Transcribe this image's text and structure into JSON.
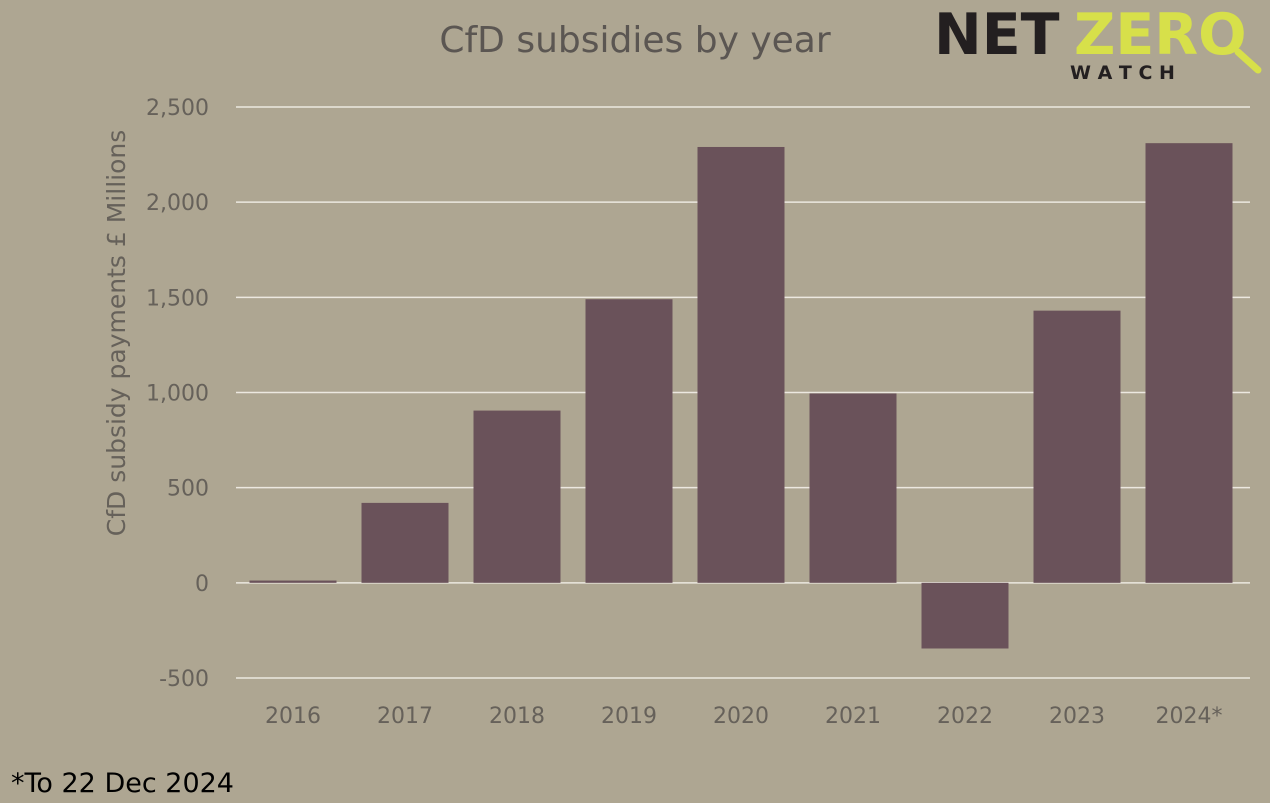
{
  "chart_data": {
    "type": "bar",
    "title": "CfD subsidies by year",
    "xlabel": "",
    "ylabel": "CfD subsidy payments £ Millions",
    "categories": [
      "2016",
      "2017",
      "2018",
      "2019",
      "2020",
      "2021",
      "2022",
      "2023",
      "2024*"
    ],
    "values": [
      12,
      420,
      905,
      1490,
      2290,
      995,
      -345,
      1430,
      2310
    ],
    "ylim": [
      -500,
      2500
    ],
    "yticks": [
      2500,
      2000,
      1500,
      1000,
      500,
      0,
      -500
    ],
    "ytick_labels": [
      "2,500",
      "2,000",
      "1,500",
      "1,000",
      "500",
      "0",
      "-500"
    ],
    "grid": true,
    "bar_color": "#6a525a",
    "grid_color": "#ece8e0",
    "background_color": "#aea692",
    "footnote": "*To 22 Dec 2024"
  },
  "logo": {
    "word1": "NET",
    "word2": "ZERO",
    "subtitle": "W A T C H",
    "color_dark": "#231f20",
    "color_accent": "#d7e04a"
  }
}
